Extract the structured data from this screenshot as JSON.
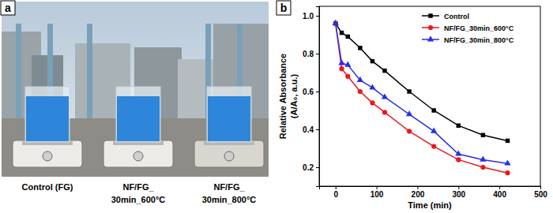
{
  "photo_panel": {
    "label": "a",
    "captions": [
      [
        "Control (FG)"
      ],
      [
        "NF/FG_",
        "30min_600°C"
      ],
      [
        "NF/FG_",
        "30min_800°C"
      ]
    ]
  },
  "chart_data": {
    "type": "line",
    "annotations": [
      "b"
    ],
    "xlabel": "Time (min)",
    "ylabel": [
      "Relative Absorbance",
      "(A/A₀, a.u.)"
    ],
    "x": [
      0,
      15,
      30,
      60,
      90,
      120,
      180,
      240,
      300,
      360,
      420
    ],
    "series": [
      {
        "name": "Control",
        "color": "#000000",
        "marker": "square",
        "values": [
          0.96,
          0.91,
          0.89,
          0.83,
          0.76,
          0.71,
          0.6,
          0.5,
          0.42,
          0.37,
          0.34
        ]
      },
      {
        "name": "NF/FG_30min_600°C",
        "color": "#e8191d",
        "marker": "circle",
        "values": [
          0.96,
          0.72,
          0.68,
          0.6,
          0.54,
          0.49,
          0.39,
          0.31,
          0.24,
          0.2,
          0.17
        ]
      },
      {
        "name": "NF/FG_30min_800°C",
        "color": "#2a2ee6",
        "marker": "triangle",
        "values": [
          0.96,
          0.75,
          0.74,
          0.66,
          0.62,
          0.57,
          0.48,
          0.39,
          0.27,
          0.24,
          0.22
        ]
      }
    ],
    "xlim": [
      -40,
      500
    ],
    "xticks": [
      0,
      100,
      200,
      300,
      400,
      500
    ],
    "ylim": [
      0.1,
      1.05
    ],
    "yticks": [
      0.2,
      0.4,
      0.6,
      0.8,
      {
        "value": 1,
        "label": "1.0"
      }
    ],
    "grid": false,
    "legend": "upper right"
  }
}
